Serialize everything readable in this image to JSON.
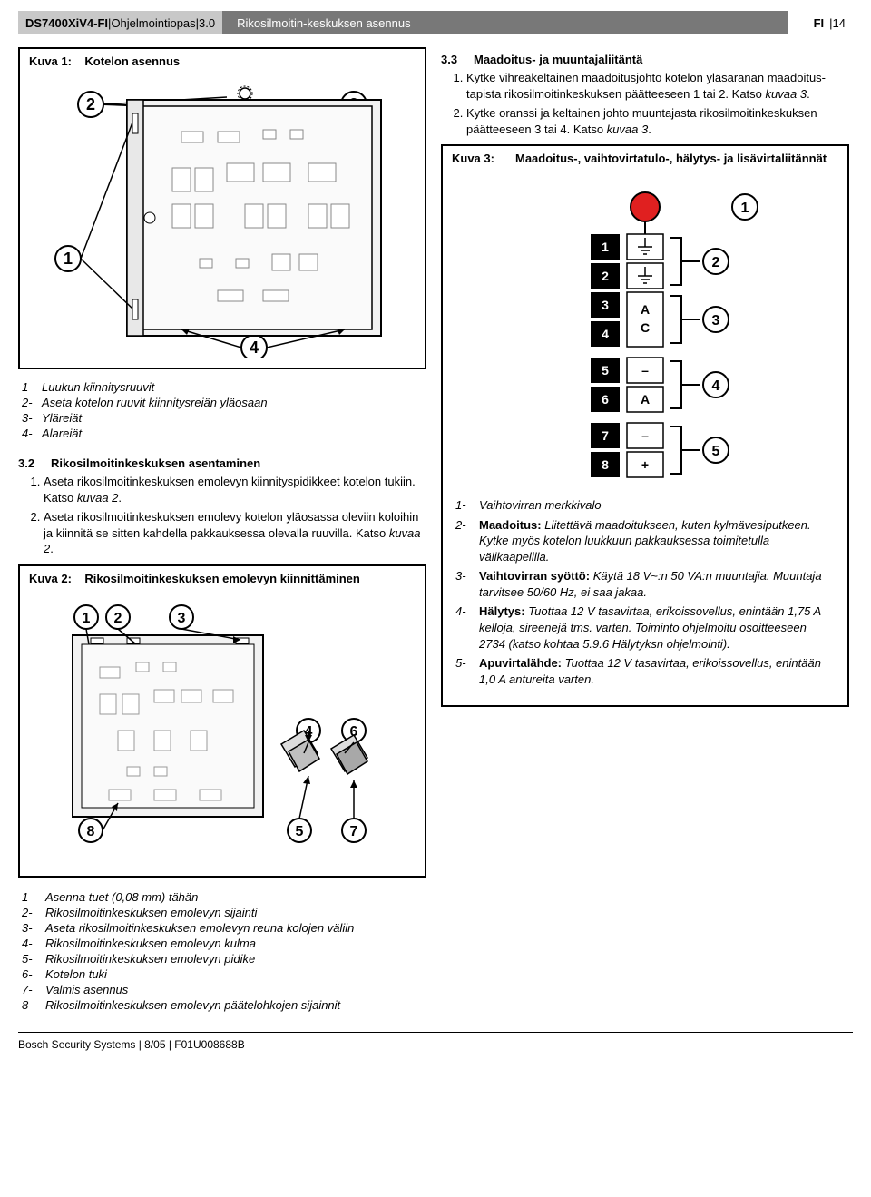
{
  "header": {
    "product": "DS7400XiV4-FI",
    "sep1": " | ",
    "doc": "Ohjelmointiopas",
    "sep2": " | ",
    "rev": "3.0",
    "section": "Rikosilmoitin-keskuksen asennus",
    "lang": "FI",
    "sep3": " | ",
    "page": "14"
  },
  "kuva1": {
    "label": "Kuva 1:",
    "caption": "Kotelon asennus",
    "callouts": {
      "c1": "1",
      "c2": "2",
      "c3": "3",
      "c4": "4"
    },
    "legend": [
      {
        "n": "1-",
        "t": "Luukun kiinnitysruuvit"
      },
      {
        "n": "2-",
        "t": "Aseta kotelon ruuvit kiinnitysreiän yläosaan"
      },
      {
        "n": "3-",
        "t": "Yläreiät"
      },
      {
        "n": "4-",
        "t": "Alareiät"
      }
    ]
  },
  "sec32": {
    "num": "3.2",
    "title": "Rikosilmoitinkeskuksen asentaminen",
    "steps": [
      "Aseta rikosilmoitinkeskuksen emolevyn kiinnityspidikkeet kotelon tukiin. Katso <i>kuvaa 2</i>.",
      "Aseta rikosilmoitinkeskuksen emolevy kotelon yläosassa oleviin koloihin ja kiinnitä se sitten kahdella pakkauksessa olevalla ruuvilla. Katso <i>kuvaa 2</i>."
    ]
  },
  "kuva2": {
    "label": "Kuva 2:",
    "caption": "Rikosilmoitinkeskuksen emolevyn kiinnittäminen",
    "callouts": {
      "c1": "1",
      "c2": "2",
      "c3": "3",
      "c4": "4",
      "c5": "5",
      "c6": "6",
      "c7": "7",
      "c8": "8"
    },
    "legend": [
      {
        "n": "1-",
        "t": "Asenna tuet (0,08 mm) tähän"
      },
      {
        "n": "2-",
        "t": "Rikosilmoitinkeskuksen emolevyn sijainti"
      },
      {
        "n": "3-",
        "t": "Aseta rikosilmoitinkeskuksen emolevyn reuna kolojen väliin"
      },
      {
        "n": "4-",
        "t": "Rikosilmoitinkeskuksen emolevyn kulma"
      },
      {
        "n": "5-",
        "t": "Rikosilmoitinkeskuksen emolevyn pidike"
      },
      {
        "n": "6-",
        "t": "Kotelon tuki"
      },
      {
        "n": "7-",
        "t": "Valmis asennus"
      },
      {
        "n": "8-",
        "t": "Rikosilmoitinkeskuksen emolevyn päätelohkojen sijainnit"
      }
    ]
  },
  "sec33": {
    "num": "3.3",
    "title": "Maadoitus- ja muuntajaliitäntä",
    "steps": [
      "Kytke vihreäkeltainen maadoitusjohto kotelon yläsaranan maadoitus-tapista rikosilmoitinkeskuksen päätteeseen 1 tai 2. Katso <i>kuvaa 3</i>.",
      "Kytke oranssi ja keltainen johto muuntajasta rikosilmoitinkeskuksen päätteeseen 3 tai 4. Katso <i>kuvaa 3</i>."
    ]
  },
  "kuva3": {
    "label": "Kuva 3:",
    "caption": "Maadoitus-, vaihtovirtatulo-, hälytys- ja lisävirtaliitännät",
    "terminals": [
      {
        "num": "1",
        "sym": "gnd"
      },
      {
        "num": "2",
        "sym": "gnd"
      },
      {
        "num": "3",
        "sym": "A"
      },
      {
        "num": "4",
        "sym": "C"
      },
      {
        "num": "5",
        "sym": "–"
      },
      {
        "num": "6",
        "sym": "A"
      },
      {
        "num": "7",
        "sym": "–"
      },
      {
        "num": "8",
        "sym": "+"
      }
    ],
    "sideLabels": {
      "led": "1",
      "g2": "2",
      "g3": "3",
      "g4": "4",
      "g5": "5"
    },
    "legend": [
      {
        "n": "1-",
        "t": "Vaihtovirran merkkivalo"
      },
      {
        "n": "2-",
        "bold": "Maadoitus:",
        "t": " Liitettävä maadoitukseen, kuten kylmävesiputkeen. Kytke myös kotelon luukkuun pakkauksessa toimitetulla välikaapelilla."
      },
      {
        "n": "3-",
        "bold": "Vaihtovirran syöttö:",
        "t": " Käytä 18 V~:n 50 VA:n muuntajia. Muuntaja tarvitsee 50/60 Hz, ei saa jakaa."
      },
      {
        "n": "4-",
        "bold": "Hälytys:",
        "t": " Tuottaa 12 V tasavirtaa, erikoissovellus, enintään 1,75 A kelloja, sireenejä tms. varten. Toiminto ohjelmoitu osoitteeseen 2734 (katso kohtaa 5.9.6 Hälytyksn ohjelmointi)."
      },
      {
        "n": "5-",
        "bold": "Apuvirtalähde:",
        "t": " Tuottaa 12 V tasavirtaa, erikoissovellus, enintään 1,0 A antureita varten."
      }
    ]
  },
  "footer": "Bosch Security Systems | 8/05 | F01U008688B"
}
